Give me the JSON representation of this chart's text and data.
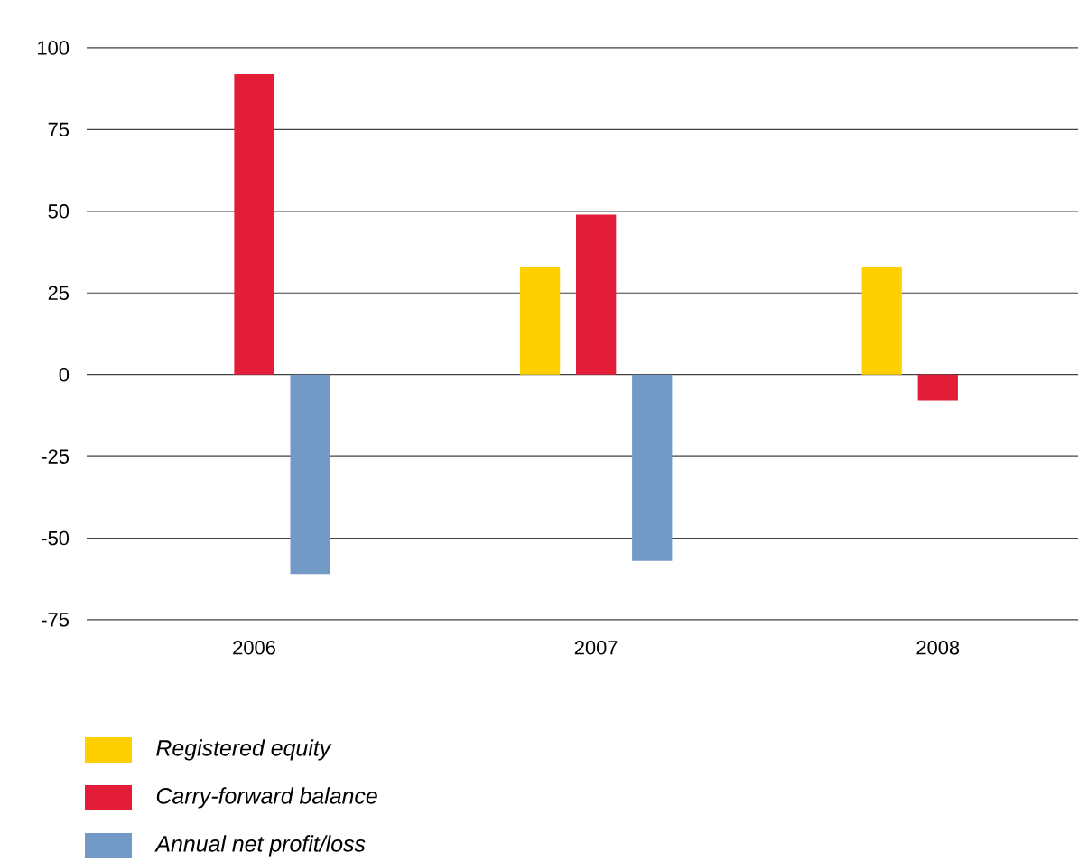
{
  "chart_data": {
    "type": "bar",
    "categories": [
      "2006",
      "2007",
      "2008"
    ],
    "series": [
      {
        "name": "Registered equity",
        "color": "#ffd000",
        "values": [
          null,
          33,
          33
        ]
      },
      {
        "name": "Carry-forward balance",
        "color": "#e31d38",
        "values": [
          92,
          49,
          -8
        ]
      },
      {
        "name": "Annual net profit/loss",
        "color": "#7399c6",
        "values": [
          -61,
          -57,
          null
        ]
      }
    ],
    "ylim": [
      -75,
      100
    ],
    "yticks": [
      -75,
      -50,
      -25,
      0,
      25,
      50,
      75,
      100
    ],
    "grid": "y",
    "legend": "bottom"
  }
}
